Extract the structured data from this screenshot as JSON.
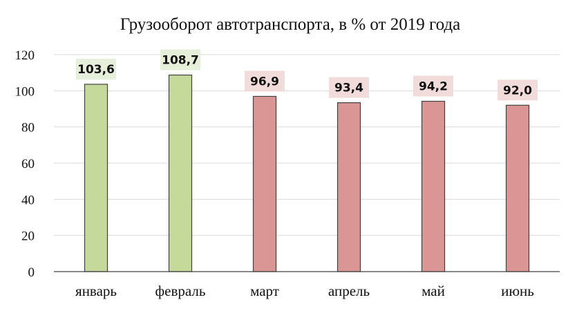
{
  "chart_data": {
    "type": "bar",
    "title": "Грузооборот автотранспорта, в % от 2019 года",
    "categories": [
      "январь",
      "февраль",
      "март",
      "апрель",
      "май",
      "июнь"
    ],
    "values": [
      103.6,
      108.7,
      96.9,
      93.4,
      94.2,
      92.0
    ],
    "data_labels": [
      "103,6",
      "108,7",
      "96,9",
      "93,4",
      "94,2",
      "92,0"
    ],
    "yticks": [
      "0",
      "20",
      "40",
      "60",
      "80",
      "100",
      "120"
    ],
    "ylim": [
      0,
      120
    ],
    "grid": true,
    "colors": {
      "above_100_fill": "#c5d99a",
      "above_100_label_bg": "#e6efd9",
      "below_100_fill": "#d99694",
      "below_100_label_bg": "#f2dcdb",
      "bar_stroke": "#404040",
      "grid": "#d9d9d9",
      "axis": "#404040"
    }
  }
}
